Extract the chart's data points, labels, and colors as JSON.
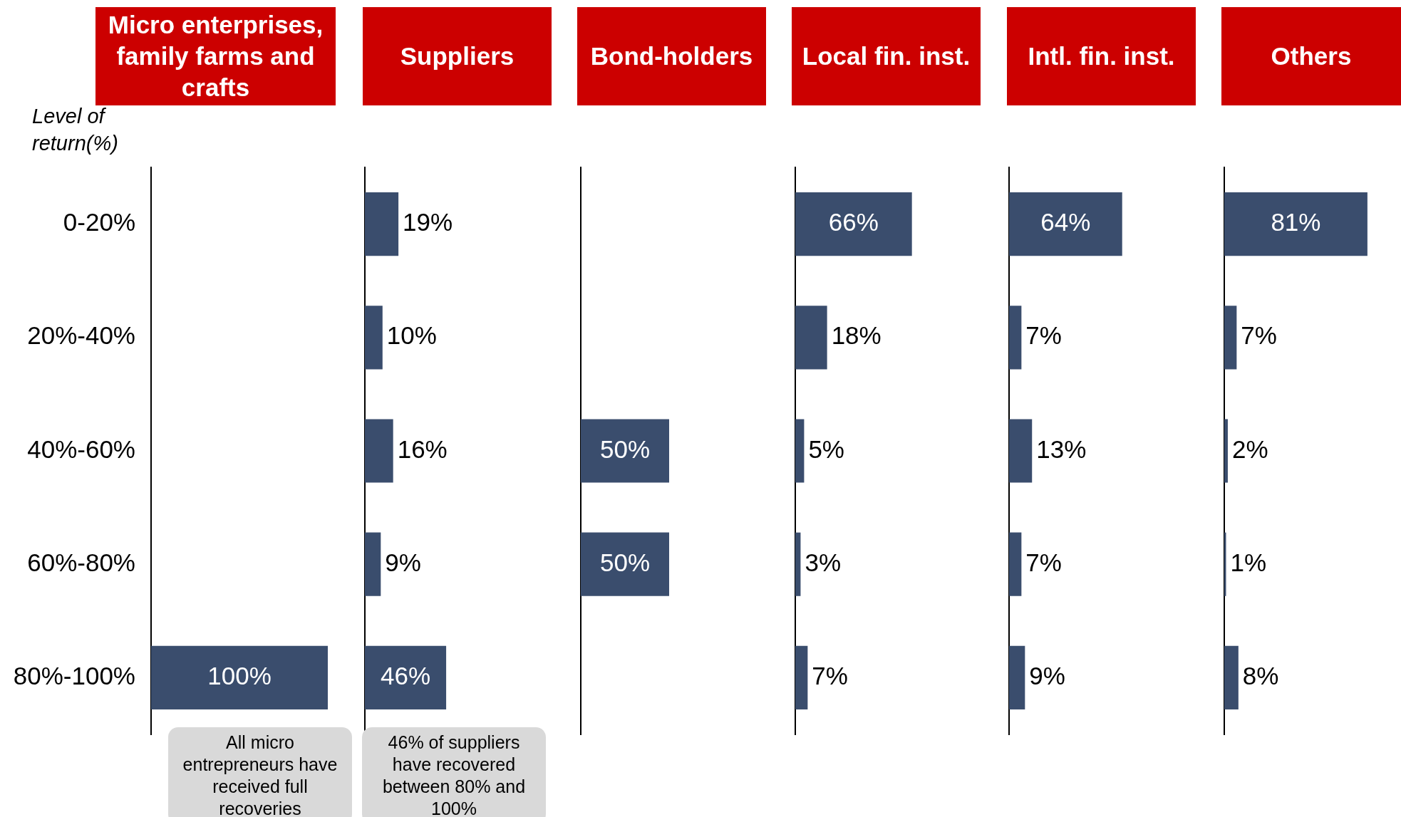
{
  "chart_data": [
    {
      "type": "bar",
      "orientation": "horizontal",
      "title": "Micro enterprises, family farms and crafts",
      "ylabel": "Level of return(%)",
      "categories": [
        "0-20%",
        "20%-40%",
        "40%-60%",
        "60%-80%",
        "80%-100%"
      ],
      "values": [
        null,
        null,
        null,
        null,
        100
      ],
      "value_labels": [
        null,
        null,
        null,
        null,
        "100%"
      ],
      "color": "#3a4d6d",
      "tick_labels": "y",
      "annotations": [
        "All micro entrepreneurs have received full recoveries"
      ]
    },
    {
      "type": "bar",
      "orientation": "horizontal",
      "title": "Suppliers",
      "categories": [
        null,
        null,
        null,
        null,
        null
      ],
      "values": [
        19,
        10,
        16,
        9,
        46
      ],
      "value_labels": [
        "19%",
        "10%",
        "16%",
        "9%",
        "46%"
      ],
      "color": "#3a4d6d",
      "tick_labels": false,
      "annotations": [
        "46% of suppliers have recovered between 80% and 100%"
      ]
    },
    {
      "type": "bar",
      "orientation": "horizontal",
      "title": "Bond-holders",
      "categories": [
        null,
        null,
        null,
        null,
        null
      ],
      "values": [
        null,
        null,
        50,
        50,
        null
      ],
      "value_labels": [
        null,
        null,
        "50%",
        "50%",
        null
      ],
      "color": "#3a4d6d",
      "tick_labels": false
    },
    {
      "type": "bar",
      "orientation": "horizontal",
      "title": "Local fin. inst.",
      "categories": [
        null,
        null,
        null,
        null,
        null
      ],
      "values": [
        66,
        18,
        5,
        3,
        7
      ],
      "value_labels": [
        "66%",
        "18%",
        "5%",
        "3%",
        "7%"
      ],
      "color": "#3a4d6d",
      "tick_labels": false
    },
    {
      "type": "bar",
      "orientation": "horizontal",
      "title": "Intl. fin. inst.",
      "categories": [
        null,
        null,
        null,
        null,
        null
      ],
      "values": [
        64,
        7,
        13,
        7,
        9
      ],
      "value_labels": [
        "64%",
        "7%",
        "13%",
        "7%",
        "9%"
      ],
      "color": "#3a4d6d",
      "tick_labels": false
    },
    {
      "type": "bar",
      "orientation": "horizontal",
      "title": "Others",
      "categories": [
        null,
        null,
        null,
        null,
        null
      ],
      "values": [
        81,
        7,
        2,
        1,
        8
      ],
      "value_labels": [
        "81%",
        "7%",
        "2%",
        "1%",
        "8%"
      ],
      "color": "#3a4d6d",
      "tick_labels": false
    }
  ]
}
